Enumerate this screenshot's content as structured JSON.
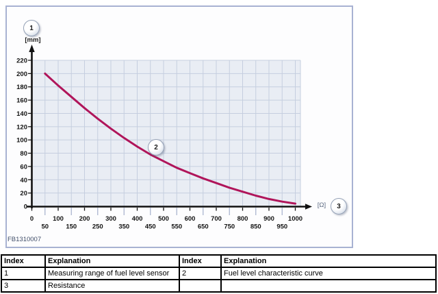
{
  "figure": {
    "code": "FB1310007",
    "y_unit_label": "[mm]",
    "x_unit_label": "[Ω]",
    "badges": {
      "b1": "1",
      "b2": "2",
      "b3": "3"
    }
  },
  "colors": {
    "frame_border": "#a8b2d2",
    "grid_bg": "#e9edf4",
    "grid_line": "#c5cedf",
    "minor_tick": "#a9b5cf",
    "axis": "#111111",
    "curve": "#b0155a",
    "tick_text": "#141414"
  },
  "chart_data": {
    "type": "line",
    "title": "",
    "xlabel": "[Ω]",
    "ylabel": "[mm]",
    "xlim": [
      0,
      1020
    ],
    "ylim": [
      0,
      220
    ],
    "grid": true,
    "x_ticks_row1": [
      0,
      100,
      200,
      300,
      400,
      500,
      600,
      700,
      800,
      900,
      1000
    ],
    "x_ticks_row2": [
      50,
      150,
      250,
      350,
      450,
      550,
      650,
      750,
      850,
      950
    ],
    "y_ticks": [
      0,
      20,
      40,
      60,
      80,
      100,
      120,
      140,
      160,
      180,
      200,
      220
    ],
    "series": [
      {
        "name": "Fuel level characteristic curve",
        "points": [
          [
            50,
            200
          ],
          [
            100,
            182
          ],
          [
            150,
            165
          ],
          [
            200,
            148
          ],
          [
            250,
            132
          ],
          [
            300,
            117
          ],
          [
            350,
            103
          ],
          [
            400,
            90
          ],
          [
            450,
            78
          ],
          [
            500,
            68
          ],
          [
            550,
            58
          ],
          [
            600,
            50
          ],
          [
            650,
            42
          ],
          [
            700,
            35
          ],
          [
            750,
            28
          ],
          [
            800,
            22
          ],
          [
            850,
            16
          ],
          [
            900,
            11
          ],
          [
            950,
            7
          ],
          [
            1000,
            4
          ]
        ]
      }
    ],
    "annotations": [
      {
        "label": "1",
        "meaning": "Measuring range of fuel level sensor",
        "anchor": "y-axis"
      },
      {
        "label": "2",
        "meaning": "Fuel level characteristic curve",
        "anchor_data_xy": [
          470,
          90
        ]
      },
      {
        "label": "3",
        "meaning": "Resistance",
        "anchor": "x-axis"
      }
    ]
  },
  "table": {
    "headers": [
      "Index",
      "Explanation",
      "Index",
      "Explanation"
    ],
    "rows": [
      [
        "1",
        "Measuring range of fuel level sensor",
        "2",
        "Fuel level characteristic curve"
      ],
      [
        "3",
        "Resistance",
        "",
        ""
      ]
    ]
  }
}
